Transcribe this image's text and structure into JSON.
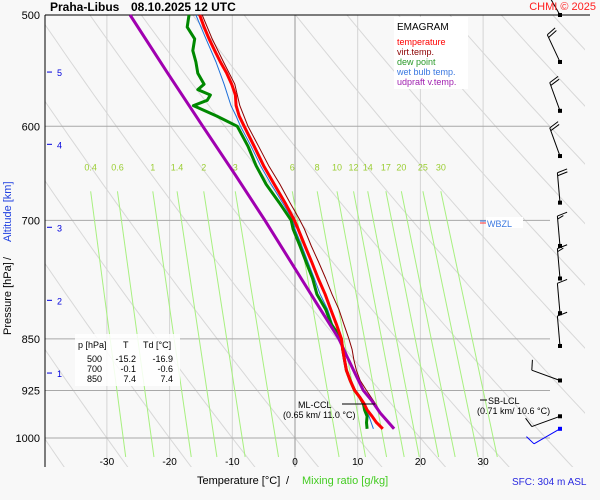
{
  "header": {
    "station": "Praha-Libus",
    "datetime": "08.10.2025 12 UTC",
    "copyright": "CHMI © 2025"
  },
  "chart_data": {
    "type": "line",
    "title": "EMAGRAM",
    "xlabel": "Temperature [°C]",
    "xlabel_sep": "/",
    "xlabel2": "Mixing ratio [g/kg]",
    "ylabel": "Pressure [hPa]",
    "ylabel_sep": "/",
    "ylabel2": "Altitude [km]",
    "xlim": [
      -38,
      48
    ],
    "ylim_hpa": [
      500,
      1050
    ],
    "x_ticks": [
      -30,
      -20,
      -10,
      0,
      10,
      20,
      30
    ],
    "x_tick_labels": [
      "-30",
      "-20",
      "-10",
      "0",
      "10",
      "20",
      "30"
    ],
    "y_ticks": [
      500,
      600,
      700,
      850,
      925,
      1000
    ],
    "y_tick_labels": [
      "500",
      "600",
      "700",
      "850",
      "925",
      "1000"
    ],
    "altitude_ticks": [
      {
        "km": "5",
        "p": 549
      },
      {
        "km": "4",
        "p": 618
      },
      {
        "km": "3",
        "p": 708
      },
      {
        "km": "2",
        "p": 798
      },
      {
        "km": "1",
        "p": 899
      }
    ],
    "mixing_ratio_labels": [
      "0.4",
      "0.6",
      "1",
      "1.4",
      "2",
      "3",
      "6",
      "8",
      "10",
      "12",
      "14",
      "17",
      "20",
      "25",
      "30"
    ],
    "mixing_ratio_values": [
      0.4,
      0.6,
      1,
      1.4,
      2,
      3,
      6,
      8,
      10,
      12,
      14,
      17,
      20,
      25,
      30
    ],
    "legend": [
      {
        "label": "temperature",
        "color": "#ff0000"
      },
      {
        "label": "virt.temp.",
        "color": "#8b0000"
      },
      {
        "label": "dew point",
        "color": "#008800"
      },
      {
        "label": "wet bulb temp.",
        "color": "#1e6fd9"
      },
      {
        "label": "udpraft v.temp.",
        "color": "#a000b0"
      }
    ],
    "legend_position": "top-right",
    "series": [
      {
        "name": "temperature",
        "color": "#ff0000",
        "p": [
          985,
          975,
          965,
          955,
          945,
          935,
          925,
          910,
          895,
          880,
          865,
          850,
          830,
          810,
          790,
          770,
          750,
          730,
          710,
          700,
          680,
          660,
          640,
          620,
          600,
          590,
          580,
          570,
          560,
          550,
          540,
          530,
          520,
          510,
          500
        ],
        "t": [
          14.0,
          13.0,
          12.3,
          11.5,
          11.0,
          10.3,
          9.5,
          8.8,
          8.2,
          7.9,
          7.6,
          7.4,
          6.6,
          5.7,
          4.8,
          3.7,
          2.7,
          1.6,
          0.5,
          -0.1,
          -1.6,
          -3.3,
          -5.0,
          -6.5,
          -8.1,
          -8.9,
          -9.4,
          -9.5,
          -10.1,
          -10.9,
          -11.9,
          -12.8,
          -13.7,
          -14.5,
          -15.2
        ]
      },
      {
        "name": "virt.temp.",
        "color": "#8b0000",
        "p": [
          985,
          965,
          945,
          925,
          910,
          895,
          880,
          865,
          850,
          830,
          810,
          790,
          770,
          750,
          730,
          710,
          700,
          680,
          660,
          640,
          620,
          600,
          580,
          560,
          540,
          520,
          500
        ],
        "t": [
          15.6,
          14.0,
          12.8,
          11.4,
          10.4,
          9.8,
          9.4,
          9.1,
          8.6,
          7.8,
          7.0,
          5.9,
          4.9,
          3.8,
          2.6,
          1.5,
          0.8,
          -0.8,
          -2.4,
          -4.2,
          -5.8,
          -7.5,
          -8.8,
          -9.6,
          -11.4,
          -13.2,
          -14.8
        ]
      },
      {
        "name": "dew point",
        "color": "#008800",
        "p": [
          985,
          975,
          965,
          955,
          945,
          935,
          925,
          910,
          895,
          880,
          865,
          850,
          830,
          810,
          790,
          770,
          750,
          730,
          710,
          700,
          680,
          660,
          640,
          620,
          600,
          590,
          580,
          575,
          570,
          565,
          560,
          550,
          540,
          530,
          520,
          510,
          500
        ],
        "t": [
          11.5,
          11.4,
          11.5,
          11.1,
          10.9,
          10.3,
          9.5,
          8.8,
          8.2,
          7.9,
          7.6,
          7.4,
          5.8,
          4.9,
          3.5,
          2.8,
          1.8,
          0.8,
          -0.3,
          -0.6,
          -2.5,
          -4.6,
          -6.2,
          -7.5,
          -9.2,
          -12.5,
          -16.2,
          -14.0,
          -13.5,
          -15.5,
          -14.5,
          -15.5,
          -15.8,
          -16.3,
          -16.0,
          -17.2,
          -16.9
        ]
      },
      {
        "name": "wet bulb temp.",
        "color": "#1e6fd9",
        "p": [
          985,
          965,
          945,
          925,
          910,
          895,
          880,
          865,
          850,
          830,
          810,
          790,
          770,
          750,
          730,
          710,
          700,
          680,
          660,
          640,
          620,
          600,
          590,
          580,
          560,
          540,
          520,
          500
        ],
        "t": [
          12.5,
          11.8,
          11.0,
          9.6,
          8.8,
          8.2,
          7.9,
          7.6,
          7.4,
          6.0,
          5.2,
          4.0,
          3.1,
          2.1,
          1.1,
          0.0,
          -0.3,
          -2.0,
          -3.8,
          -5.5,
          -7.0,
          -8.7,
          -9.4,
          -10.2,
          -11.3,
          -12.6,
          -14.2,
          -15.8
        ]
      },
      {
        "name": "udpraft v.temp.",
        "color": "#a000b0",
        "p": [
          985,
          960,
          940,
          925,
          900,
          875,
          850,
          800,
          750,
          700,
          650,
          600,
          550,
          500
        ],
        "t": [
          15.8,
          13.6,
          12.2,
          10.9,
          9.6,
          8.3,
          7.0,
          3.3,
          -0.6,
          -4.8,
          -9.5,
          -14.7,
          -20.3,
          -26.3
        ]
      }
    ],
    "annotations": [
      {
        "label": "ML-CCL",
        "sub": "(0.65 km/ 11.0 °C)",
        "p": 935,
        "t": 11.0
      },
      {
        "label": "SB-LCL",
        "sub": "(0.71 km/ 10.6 °C)",
        "p": 930,
        "t": 10.6
      },
      {
        "label": "WBZL",
        "p": 699
      }
    ],
    "table": {
      "headers": [
        "p [hPa]",
        "T",
        "Td [°C]"
      ],
      "rows": [
        [
          "500",
          "-15.2",
          "-16.9"
        ],
        [
          "700",
          "-0.1",
          "-0.6"
        ],
        [
          "850",
          "7.4",
          "7.4"
        ]
      ]
    },
    "wind_barbs": [
      {
        "p": 500,
        "dir": 330,
        "speed_kt": 20
      },
      {
        "p": 540,
        "dir": 335,
        "speed_kt": 20
      },
      {
        "p": 585,
        "dir": 340,
        "speed_kt": 20
      },
      {
        "p": 630,
        "dir": 340,
        "speed_kt": 20
      },
      {
        "p": 680,
        "dir": 355,
        "speed_kt": 20
      },
      {
        "p": 730,
        "dir": 355,
        "speed_kt": 15
      },
      {
        "p": 770,
        "dir": 355,
        "speed_kt": 15
      },
      {
        "p": 815,
        "dir": 355,
        "speed_kt": 10
      },
      {
        "p": 860,
        "dir": 355,
        "speed_kt": 10
      },
      {
        "p": 910,
        "dir": 290,
        "speed_kt": 10
      },
      {
        "p": 965,
        "dir": 250,
        "speed_kt": 10
      },
      {
        "p": 985,
        "dir": 240,
        "speed_kt": 10,
        "color": "#0000ff"
      }
    ],
    "surface": "SFC: 304 m ASL"
  }
}
